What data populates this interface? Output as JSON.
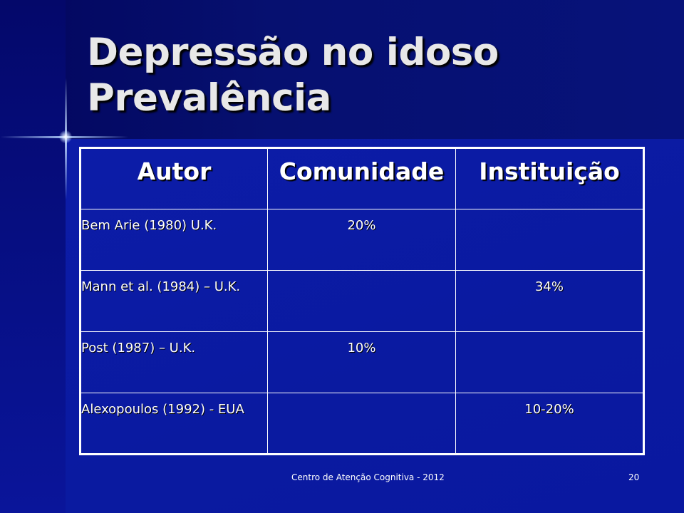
{
  "slide": {
    "title_line1": "Depressão no idoso",
    "title_line2": "Prevalência"
  },
  "table": {
    "headers": [
      "Autor",
      "Comunidade",
      "Instituição"
    ],
    "rows": [
      {
        "author": "Bem Arie (1980) U.K.",
        "comunidade": "20%",
        "instituicao": ""
      },
      {
        "author": "Mann et al. (1984) – U.K.",
        "comunidade": "",
        "instituicao": "34%"
      },
      {
        "author": "Post (1987) – U.K.",
        "comunidade": "10%",
        "instituicao": ""
      },
      {
        "author": "Alexopoulos (1992) - EUA",
        "comunidade": "",
        "instituicao": "10-20%"
      }
    ]
  },
  "footer": {
    "text": "Centro de Atenção Cognitiva - 2012",
    "page_number": "20"
  },
  "colors": {
    "background": "#0a1a9a",
    "top_band": "#03065e",
    "text": "#ffffff",
    "title": "#e8e8e8"
  }
}
